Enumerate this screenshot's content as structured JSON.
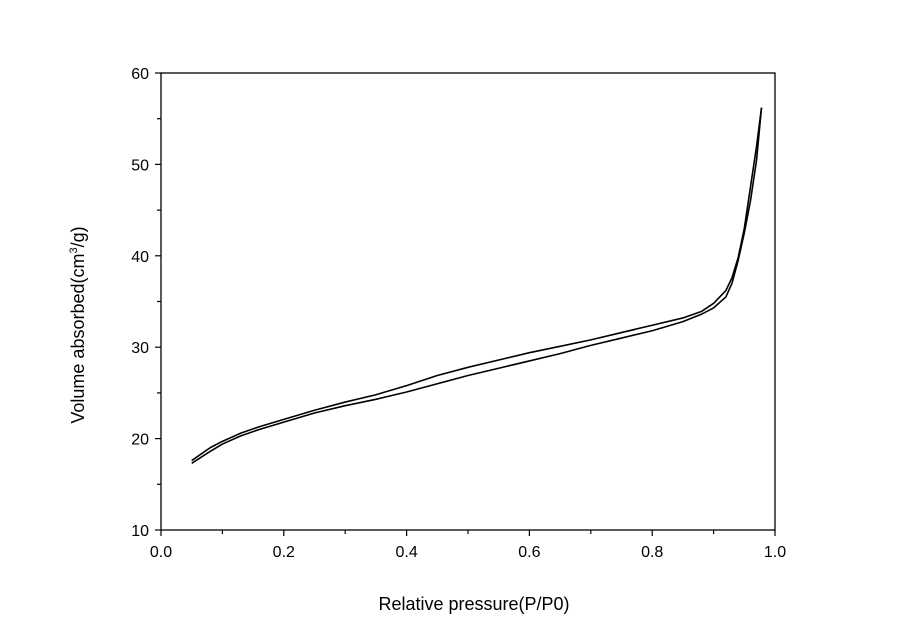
{
  "chart_data": {
    "type": "line",
    "title": "",
    "xlabel": "Relative pressure(P/P0)",
    "ylabel": {
      "prefix": "Volume absorbed(cm",
      "superscript": "3",
      "suffix": "/g)"
    },
    "xlim": [
      0.0,
      1.0
    ],
    "ylim": [
      10,
      60
    ],
    "x_ticks": [
      "0.0",
      "0.2",
      "0.4",
      "0.6",
      "0.8",
      "1.0"
    ],
    "y_ticks": [
      "10",
      "20",
      "30",
      "40",
      "50",
      "60"
    ],
    "grid": false,
    "legend": "none",
    "line_color": "#000000",
    "series": [
      {
        "values": [
          [
            0.05,
            17.3
          ],
          [
            0.08,
            18.6
          ],
          [
            0.1,
            19.4
          ],
          [
            0.13,
            20.3
          ],
          [
            0.16,
            21.0
          ],
          [
            0.2,
            21.8
          ],
          [
            0.25,
            22.8
          ],
          [
            0.3,
            23.6
          ],
          [
            0.35,
            24.3
          ],
          [
            0.4,
            25.1
          ],
          [
            0.45,
            26.0
          ],
          [
            0.5,
            26.9
          ],
          [
            0.55,
            27.7
          ],
          [
            0.6,
            28.5
          ],
          [
            0.65,
            29.3
          ],
          [
            0.7,
            30.2
          ],
          [
            0.75,
            31.0
          ],
          [
            0.8,
            31.8
          ],
          [
            0.85,
            32.8
          ],
          [
            0.88,
            33.6
          ],
          [
            0.9,
            34.3
          ],
          [
            0.92,
            35.5
          ],
          [
            0.93,
            37.0
          ],
          [
            0.94,
            39.5
          ],
          [
            0.95,
            42.5
          ],
          [
            0.96,
            46.0
          ],
          [
            0.97,
            50.5
          ],
          [
            0.978,
            56.2
          ]
        ]
      },
      {
        "values": [
          [
            0.978,
            56.2
          ],
          [
            0.97,
            52.0
          ],
          [
            0.96,
            47.5
          ],
          [
            0.95,
            43.0
          ],
          [
            0.94,
            39.8
          ],
          [
            0.93,
            37.6
          ],
          [
            0.92,
            36.2
          ],
          [
            0.9,
            34.8
          ],
          [
            0.88,
            33.9
          ],
          [
            0.85,
            33.2
          ],
          [
            0.8,
            32.4
          ],
          [
            0.75,
            31.6
          ],
          [
            0.7,
            30.8
          ],
          [
            0.65,
            30.1
          ],
          [
            0.6,
            29.4
          ],
          [
            0.55,
            28.6
          ],
          [
            0.5,
            27.8
          ],
          [
            0.45,
            26.9
          ],
          [
            0.4,
            25.8
          ],
          [
            0.35,
            24.8
          ],
          [
            0.3,
            24.0
          ],
          [
            0.25,
            23.1
          ],
          [
            0.2,
            22.1
          ],
          [
            0.16,
            21.3
          ],
          [
            0.13,
            20.6
          ],
          [
            0.1,
            19.7
          ],
          [
            0.08,
            19.0
          ],
          [
            0.05,
            17.6
          ]
        ]
      }
    ]
  }
}
